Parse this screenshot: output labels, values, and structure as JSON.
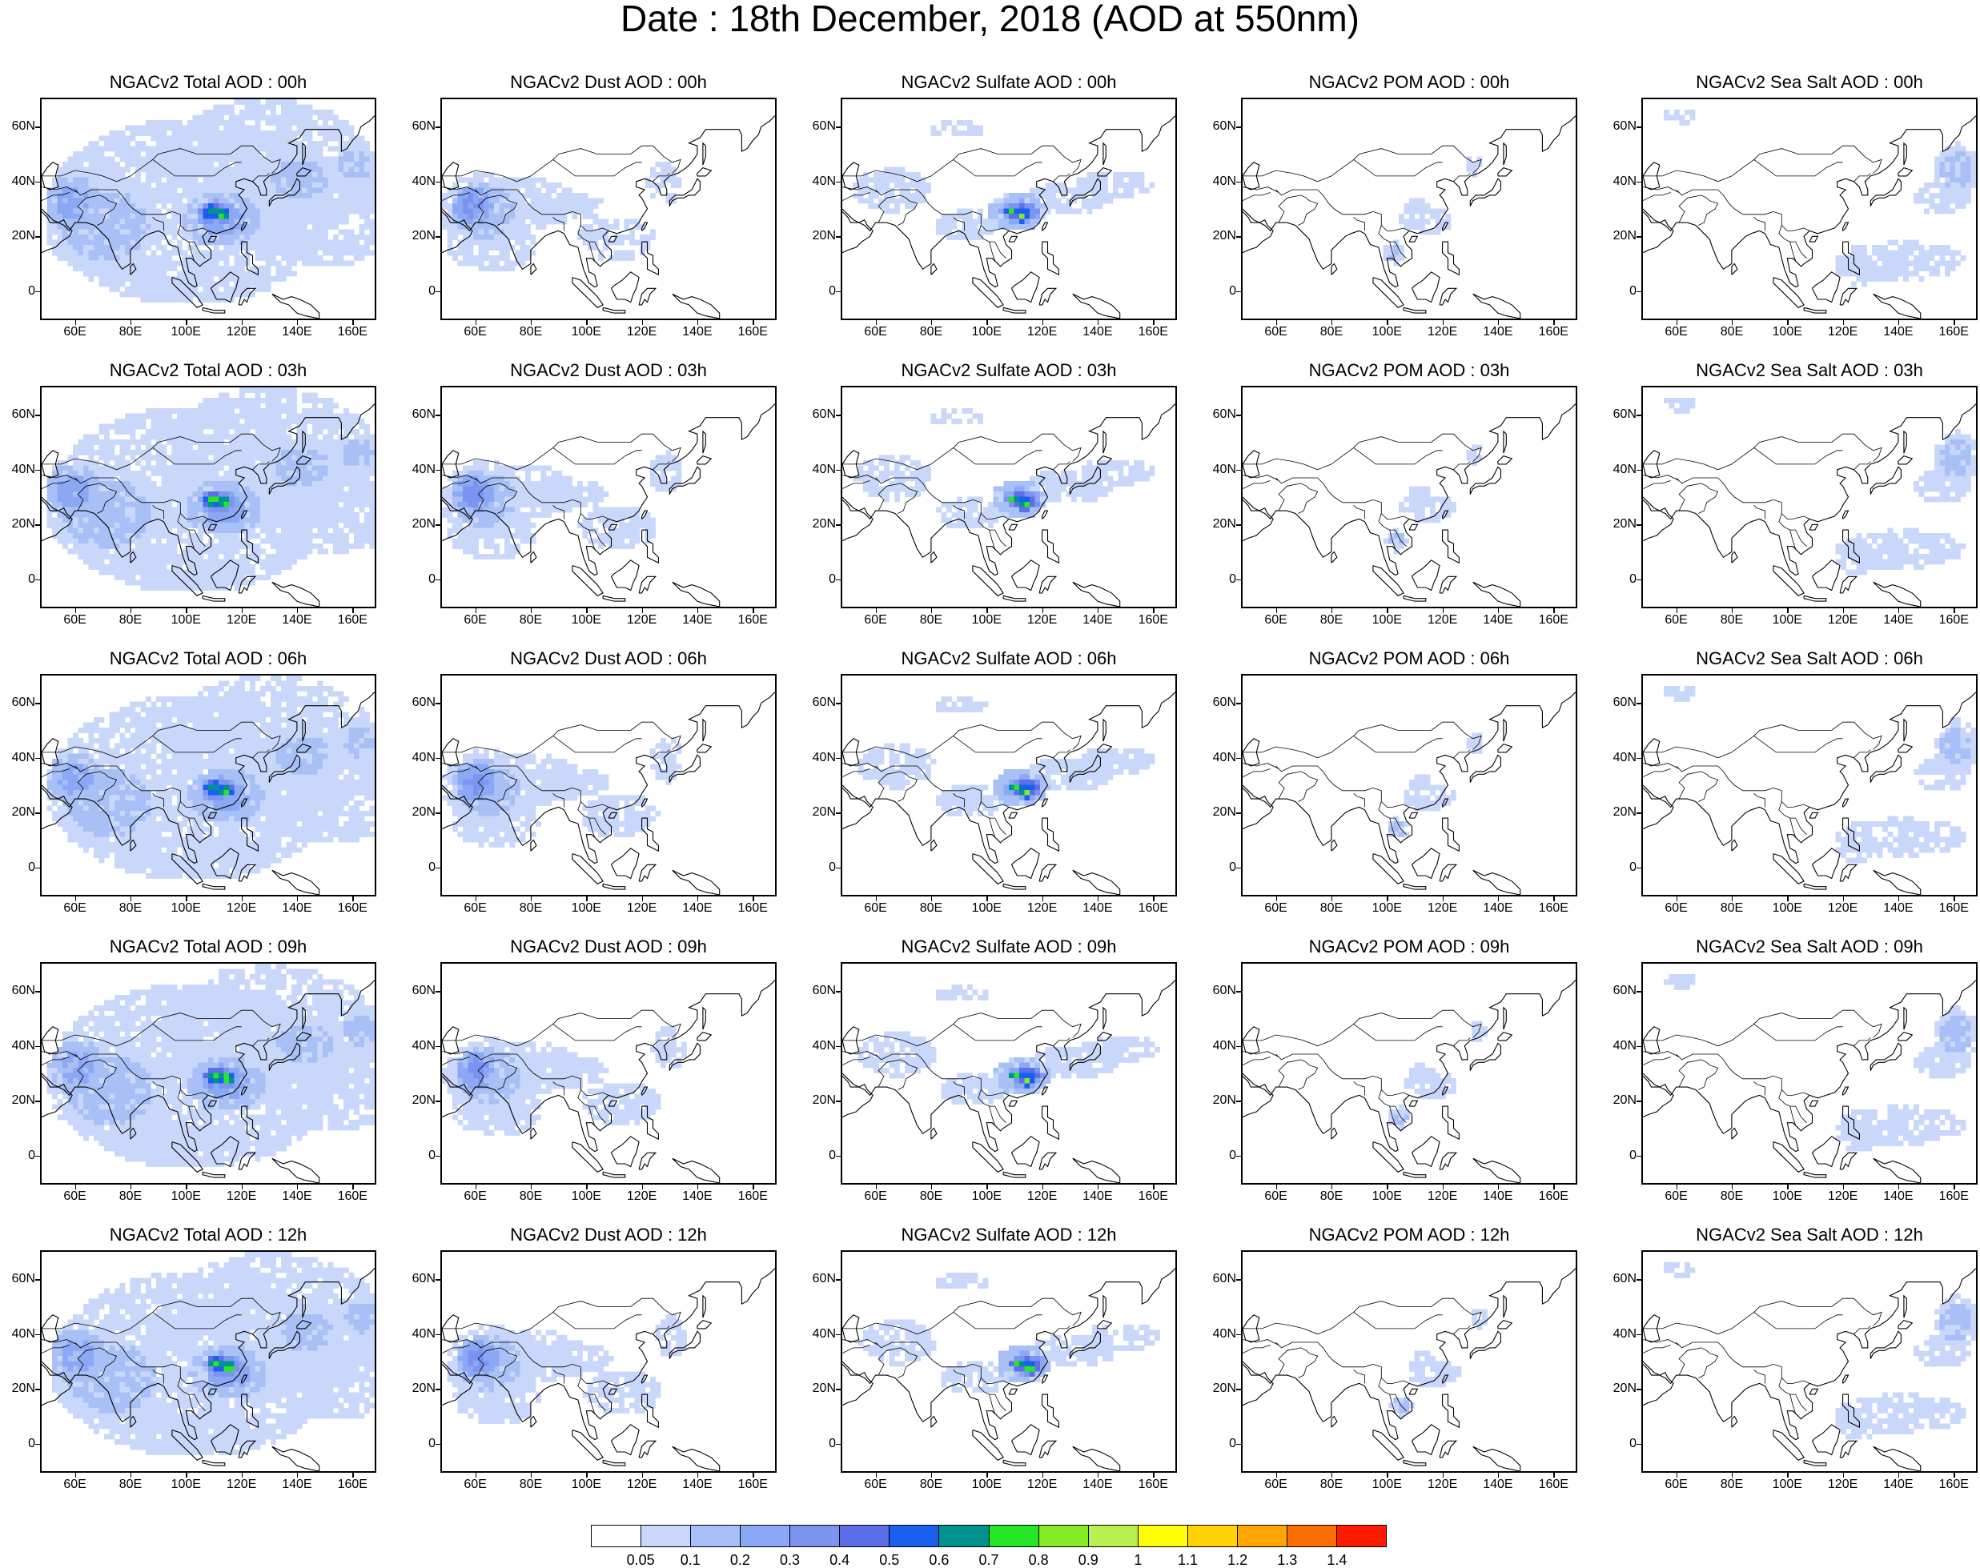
{
  "title": "Date : 18th December, 2018 (AOD at 550nm)",
  "lat_ticks": [
    "60N",
    "40N",
    "20N",
    "0"
  ],
  "lon_ticks": [
    "60E",
    "80E",
    "100E",
    "120E",
    "140E",
    "160E"
  ],
  "palette": [
    "#ffffff",
    "#c9d7fb",
    "#a8c0f6",
    "#8ba8f4",
    "#7d93f0",
    "#5d6fe8",
    "#1a5ff0",
    "#00938d",
    "#27e627",
    "#86ea28",
    "#b8f050",
    "#ffff00",
    "#ffd200",
    "#ffa500",
    "#ff6f00",
    "#ff1a00"
  ],
  "colorbar": {
    "labels": [
      "0.05",
      "0.1",
      "0.2",
      "0.3",
      "0.4",
      "0.5",
      "0.6",
      "0.7",
      "0.8",
      "0.9",
      "1",
      "1.1",
      "1.2",
      "1.3",
      "1.4"
    ]
  },
  "rows": [
    [
      "NGACv2 Total AOD : 00h",
      "NGACv2 Dust AOD : 00h",
      "NGACv2 Sulfate AOD : 00h",
      "NGACv2 POM AOD : 00h",
      "NGACv2 Sea Salt AOD : 00h"
    ],
    [
      "NGACv2 Total AOD : 03h",
      "NGACv2 Dust AOD : 03h",
      "NGACv2 Sulfate AOD : 03h",
      "NGACv2 POM AOD : 03h",
      "NGACv2 Sea Salt AOD : 03h"
    ],
    [
      "NGACv2 Total AOD : 06h",
      "NGACv2 Dust AOD : 06h",
      "NGACv2 Sulfate AOD : 06h",
      "NGACv2 POM AOD : 06h",
      "NGACv2 Sea Salt AOD : 06h"
    ],
    [
      "NGACv2 Total AOD : 09h",
      "NGACv2 Dust AOD : 09h",
      "NGACv2 Sulfate AOD : 09h",
      "NGACv2 POM AOD : 09h",
      "NGACv2 Sea Salt  AOD : 09h"
    ],
    [
      "NGACv2 Total AOD  : 12h",
      "NGACv2 Dust AOD : 12h",
      "NGACv2 Sulfate AOD : 12h",
      "NGACv2 POM  AOD : 12h",
      "NGACv2 Sea Salt  AOD : 12h"
    ]
  ]
}
